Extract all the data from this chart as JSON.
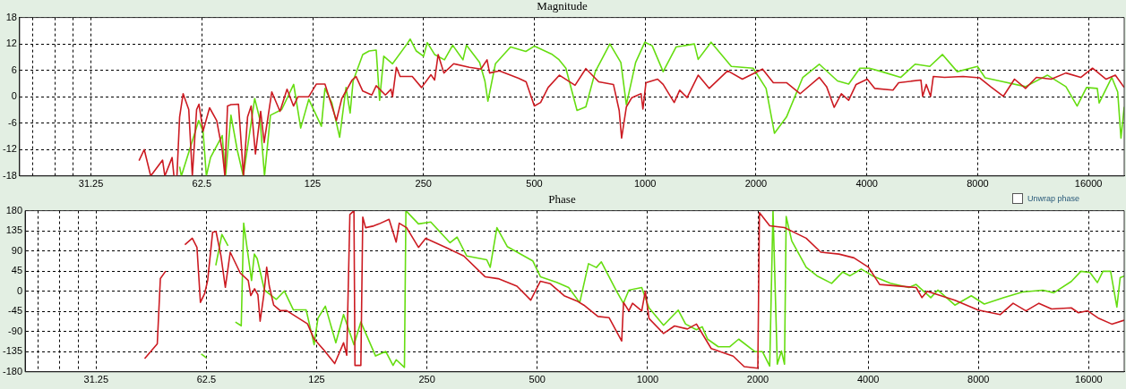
{
  "chart_data": [
    {
      "type": "line",
      "title": "Magnitude",
      "log": "x",
      "grid": true,
      "xlim": [
        20,
        20000
      ],
      "ylim": [
        -18,
        18
      ],
      "xticks": [
        {
          "value": 21.7,
          "label": null
        },
        {
          "value": 24.9,
          "label": null
        },
        {
          "value": 28,
          "label": null
        },
        31.25,
        62.5,
        125,
        250,
        500,
        1000,
        2000,
        4000,
        8000,
        16000
      ],
      "yticks": [
        -18,
        -12,
        -6,
        0,
        6,
        12,
        18
      ],
      "series": [
        {
          "color": "#cc1b22",
          "x": [
            42.2,
            43.6,
            45.4,
            48.9,
            49.6,
            51.9,
            52.5,
            53.5,
            54.4,
            55.6,
            57.6,
            58.9,
            60.5,
            61.4,
            63,
            65.6,
            68.6,
            71,
            72.2,
            73.4,
            75,
            78.6,
            81.1,
            83.2,
            85.1,
            87.4,
            90.3,
            92.3,
            96.8,
            101.9,
            106.5,
            110.9,
            114,
            122,
            128,
            135,
            145,
            150,
            160,
            164,
            171,
            181,
            186,
            197,
            204,
            206,
            211,
            216,
            233,
            247,
            262,
            268,
            274,
            284,
            302,
            333,
            358,
            372,
            378,
            402,
            453,
            475,
            500,
            520,
            545,
            585,
            645,
            690,
            748,
            820,
            850,
            863,
            889,
            920,
            975,
            986,
            1005,
            1081,
            1119,
            1199,
            1241,
            1300,
            1393,
            1492,
            1675,
            1836,
            2083,
            2229,
            2420,
            2637,
            2970,
            3110,
            3260,
            3410,
            3570,
            3740,
            4010,
            4200,
            4710,
            4880,
            5610,
            5670,
            5800,
            5960,
            6060,
            6500,
            7300,
            8100,
            8670,
            9390,
            10070,
            10790,
            11550,
            12670,
            13890,
            15240,
            16400,
            17860,
            18920,
            20000
          ],
          "values": [
            -14.5,
            -12,
            -18,
            -14.4,
            -18,
            -13.8,
            -18,
            -18,
            -4.6,
            0.7,
            -2.9,
            -18,
            -2.9,
            -1.7,
            -7.8,
            -2.5,
            -5.4,
            -12.1,
            -18,
            -2.1,
            -1.8,
            -1.7,
            -18,
            -4.6,
            -2.1,
            -13,
            -3.3,
            -10.4,
            1.1,
            -3.3,
            1.7,
            -2.1,
            0,
            0,
            2.9,
            2.9,
            -5.4,
            -0.4,
            3.8,
            4.6,
            1.3,
            0.4,
            2.5,
            0.4,
            1.7,
            0,
            6.7,
            4.6,
            4.6,
            2.1,
            5,
            3.8,
            9.6,
            5.4,
            7.5,
            6.7,
            6.3,
            8.4,
            5.4,
            5.9,
            4.2,
            3.4,
            -2.1,
            -1.3,
            2.1,
            4.9,
            2.6,
            6.4,
            3.4,
            2.8,
            -3.1,
            -9.4,
            -2.3,
            -0.2,
            0.7,
            -2.8,
            3.2,
            4,
            2.8,
            -1.3,
            1.5,
            -0.2,
            4.9,
            1.9,
            5.9,
            4,
            6.3,
            3.2,
            3.2,
            0.7,
            4.4,
            2.3,
            -2.4,
            0.7,
            -0.8,
            2.8,
            4,
            1.9,
            1.5,
            3.2,
            3.8,
            0.1,
            2.8,
            0.1,
            4.6,
            4.4,
            4.6,
            4.3,
            2.3,
            0.1,
            4,
            1.9,
            4.4,
            4,
            5.4,
            4.4,
            6.5,
            4,
            4.9,
            2.1
          ]
        },
        {
          "color": "#66dd11",
          "x": [
            54.4,
            55,
            61.3,
            63,
            64.3,
            66,
            71,
            72.5,
            75,
            78,
            81,
            87,
            90,
            92.5,
            96,
            103,
            111,
            116,
            122,
            132,
            135,
            141,
            148,
            154,
            158,
            161,
            171,
            178,
            186,
            190,
            195,
            206,
            226,
            230,
            239,
            250,
            256,
            268,
            285,
            300,
            320,
            327,
            355,
            367,
            374,
            392,
            431,
            474,
            500,
            557,
            582,
            609,
            653,
            690,
            732,
            802,
            859,
            889,
            942,
            998,
            1045,
            1119,
            1213,
            1360,
            1393,
            1510,
            1714,
            1965,
            2130,
            2245,
            2420,
            2680,
            2970,
            3330,
            3570,
            3830,
            4060,
            4390,
            4940,
            5410,
            5930,
            6420,
            7040,
            7990,
            8380,
            9170,
            10790,
            12380,
            13890,
            14900,
            15800,
            16900,
            17100,
            18500,
            19200,
            19600,
            20000
          ],
          "values": [
            -15.9,
            -18,
            -5.4,
            -7.9,
            -18,
            -13.8,
            -8.8,
            -18,
            -4.2,
            -12.1,
            -18,
            -0.4,
            -5.4,
            -18,
            -4.2,
            -2.9,
            2.8,
            -7.1,
            -0.6,
            -6.7,
            1.9,
            -1.4,
            -9.2,
            2.1,
            -3.7,
            3.6,
            9.6,
            10.4,
            10.6,
            -0.8,
            9.2,
            7.5,
            12.1,
            13.1,
            10.4,
            9.2,
            12.3,
            9.6,
            8.4,
            11.7,
            8.4,
            11.7,
            7.8,
            3.6,
            -1,
            7.5,
            11.3,
            10.3,
            11.5,
            9.7,
            8.5,
            6.5,
            -3.1,
            -2.3,
            5.7,
            12,
            7.8,
            -1.8,
            7.8,
            12.4,
            11.6,
            5.7,
            11.3,
            12,
            8.5,
            12.4,
            6.9,
            6.5,
            1.9,
            -8.3,
            -4.6,
            4.4,
            7.4,
            3.6,
            2.9,
            6.5,
            6.5,
            5.7,
            4.4,
            7.4,
            6.9,
            9.6,
            5.7,
            6.9,
            4.3,
            3.6,
            2.3,
            4.9,
            2.3,
            -2.1,
            2.1,
            1.9,
            -1.4,
            4.4,
            1.1,
            -9.4,
            -2.3
          ]
        }
      ]
    },
    {
      "type": "line",
      "title": "Phase",
      "log": "x",
      "grid": true,
      "xlim": [
        20,
        20000
      ],
      "ylim": [
        -180,
        180
      ],
      "xticks": [
        {
          "value": 21.7,
          "label": null
        },
        {
          "value": 24.9,
          "label": null
        },
        {
          "value": 28,
          "label": null
        },
        31.25,
        62.5,
        125,
        250,
        500,
        1000,
        2000,
        4000,
        8000,
        16000
      ],
      "yticks": [
        -180,
        -135,
        -90,
        -45,
        0,
        45,
        90,
        135,
        180
      ],
      "annotations": [
        "Unwrap phase"
      ],
      "series": [
        {
          "color": "#cc1b22",
          "x": [
            42.4,
            45.9,
            46.8,
            48.4,
            51,
            54.6,
            57.2,
            58.9,
            60.2,
            61.8,
            63,
            65,
            66.4,
            68.5,
            70.4,
            72.6,
            77.3,
            81.3,
            82.6,
            84.6,
            86.4,
            87.6,
            89.6,
            91.3,
            92.8,
            95.4,
            99.4,
            103.5,
            118,
            123,
            131,
            140,
            148,
            151,
            154,
            158,
            159,
            165,
            167,
            170,
            179,
            185,
            197,
            206,
            210,
            220,
            237,
            248,
            285,
            315,
            360,
            391,
            440,
            480,
            510,
            543,
            592,
            645,
            670,
            732,
            785,
            850,
            860,
            889,
            910,
            964,
            986,
            1009,
            1106,
            1185,
            1285,
            1360,
            1492,
            1713,
            1836,
            2000,
            2020,
            2155,
            2365,
            2710,
            2970,
            3330,
            3660,
            4010,
            4300,
            5410,
            5610,
            5800,
            6900,
            7990,
            9170,
            9950,
            10790,
            11700,
            12670,
            14340,
            15000,
            15900,
            17050,
            18500,
            20000
          ],
          "values": [
            -150.5,
            -117.6,
            28.2,
            45.1,
            null,
            104.1,
            118.4,
            98.2,
            -24.9,
            -5.5,
            24,
            131.9,
            133.6,
            78.8,
            8.8,
            87.3,
            40.9,
            24,
            -9.7,
            5.5,
            -8,
            -67,
            -9.7,
            53.5,
            11.4,
            -30.8,
            -43.4,
            -43.4,
            -72.9,
            -106.6,
            -132,
            -161.5,
            -115.1,
            -142.9,
            171.6,
            180,
            -165.7,
            -165.7,
            165.7,
            142,
            146,
            150.5,
            160.6,
            110,
            152,
            142,
            98,
            118.4,
            95.7,
            78.8,
            32.5,
            28.2,
            11.4,
            -19.8,
            22.4,
            16.8,
            -10,
            -22.7,
            -31,
            -56.3,
            -59,
            -111,
            -25,
            -43.7,
            -26.9,
            -43.7,
            0,
            -60.7,
            -94.4,
            -77.5,
            -84.3,
            -73.3,
            -128,
            -144.9,
            -168.5,
            -171.8,
            175.8,
            146.3,
            142.1,
            118.5,
            87.3,
            83.1,
            74.6,
            53.5,
            15.2,
            8.4,
            -14.3,
            0,
            -20.2,
            -42.1,
            -52.2,
            -26.9,
            -43.7,
            -26.9,
            -39.6,
            -37.1,
            -48,
            -43.7,
            -60.7,
            -73.3,
            -64.8
          ]
        },
        {
          "color": "#66dd11",
          "x": [
            60.5,
            62.5,
            64,
            66.3,
            68.9,
            71.6,
            73,
            75,
            77.8,
            79,
            83,
            84.5,
            86,
            90,
            97,
            102,
            108,
            117,
            123,
            126,
            132,
            141,
            148,
            158,
            165,
            181,
            193,
            202,
            206,
            217,
            219,
            237,
            256,
            289,
            302,
            321,
            364,
            372,
            388,
            414,
            486,
            510,
            565,
            609,
            653,
            690,
            725,
            748,
            820,
            859,
            889,
            964,
            1009,
            1106,
            1213,
            1270,
            1360,
            1410,
            1458,
            1560,
            1675,
            1773,
            1966,
            2060,
            2155,
            2200,
            2260,
            2320,
            2365,
            2390,
            2475,
            2710,
            2900,
            3180,
            3410,
            3570,
            3830,
            4110,
            4600,
            5170,
            5410,
            5930,
            6200,
            6900,
            7650,
            8300,
            9390,
            10560,
            12000,
            12850,
            14340,
            15240,
            16130,
            16900,
            17500,
            18360,
            19100,
            19500,
            20000
          ],
          "values": [
            -140.4,
            -148.8,
            null,
            57.8,
            126.9,
            101.6,
            null,
            -68.7,
            -77.1,
            152.2,
            24,
            83,
            72.9,
            2.9,
            -18.1,
            0.5,
            -41.7,
            -41.7,
            -119.3,
            -60.3,
            -33.3,
            -115.1,
            -51.9,
            -119.3,
            -68.7,
            -144.6,
            -134.5,
            -165.7,
            -153,
            -170,
            180,
            150.5,
            154.7,
            108.3,
            120.9,
            78.8,
            70.4,
            53.5,
            142.1,
            99.9,
            67.9,
            32.5,
            19.9,
            8.4,
            -25.3,
            61.6,
            53.1,
            65.8,
            2.5,
            -27,
            2.5,
            8.4,
            -37.1,
            -75.9,
            -42.1,
            -73.3,
            -86,
            -79.3,
            -107,
            -124,
            -124,
            -107,
            -135,
            -135,
            -167,
            180,
            -163,
            -133.6,
            -163,
            167,
            112.4,
            53.5,
            34.5,
            17.7,
            43,
            34.5,
            49.5,
            34.5,
            17.7,
            8.4,
            15.2,
            -14.3,
            2.5,
            -31,
            -10,
            -28.6,
            -14.3,
            -1.7,
            2.5,
            -3.4,
            21.9,
            44.6,
            42,
            19.4,
            44.6,
            44.6,
            -35.4,
            30.4,
            33.9
          ]
        }
      ]
    }
  ]
}
